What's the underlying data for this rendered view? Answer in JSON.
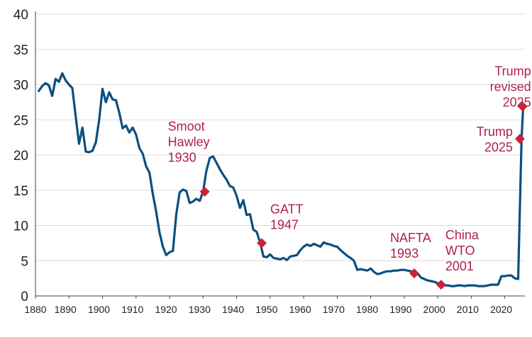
{
  "chart_data": {
    "type": "line",
    "title": "",
    "xlabel": "",
    "ylabel": "",
    "xlim": [
      1880,
      2026
    ],
    "ylim": [
      0,
      40
    ],
    "grid": true,
    "y_ticks": [
      "0",
      "5",
      "10",
      "15",
      "20",
      "25",
      "30",
      "35",
      "40"
    ],
    "x_ticks": [
      "1880",
      "1890",
      "1900",
      "1910",
      "1920",
      "1930",
      "1940",
      "1950",
      "1960",
      "1970",
      "1980",
      "1990",
      "2000",
      "2010",
      "2020"
    ],
    "colors": {
      "line": "#0b4f80",
      "marker": "#cc2233",
      "annotation": "#b0224a"
    },
    "series": [
      {
        "x": [
          1881,
          1882,
          1883,
          1884,
          1885,
          1886,
          1887,
          1888,
          1889,
          1890,
          1891,
          1892,
          1893,
          1894,
          1895,
          1896,
          1897,
          1898,
          1899,
          1900,
          1901,
          1902,
          1903,
          1904,
          1905,
          1906,
          1907,
          1908,
          1909,
          1910,
          1911,
          1912,
          1913,
          1914,
          1915,
          1916,
          1917,
          1918,
          1919,
          1920,
          1921,
          1922,
          1923,
          1924,
          1925,
          1926,
          1927,
          1928,
          1929,
          1930,
          1931,
          1932,
          1933,
          1934,
          1935,
          1936,
          1937,
          1938,
          1939,
          1940,
          1941,
          1942,
          1943,
          1944,
          1945,
          1946,
          1947,
          1948,
          1949,
          1950,
          1951,
          1952,
          1953,
          1954,
          1955,
          1956,
          1957,
          1958,
          1959,
          1960,
          1961,
          1962,
          1963,
          1964,
          1965,
          1966,
          1967,
          1968,
          1969,
          1970,
          1971,
          1972,
          1973,
          1974,
          1975,
          1976,
          1977,
          1978,
          1979,
          1980,
          1981,
          1982,
          1983,
          1984,
          1985,
          1986,
          1987,
          1988,
          1989,
          1990,
          1991,
          1992,
          1993,
          1994,
          1995,
          1996,
          1997,
          1998,
          1999,
          2000,
          2001,
          2002,
          2003,
          2004,
          2005,
          2006,
          2007,
          2008,
          2009,
          2010,
          2011,
          2012,
          2013,
          2014,
          2015,
          2016,
          2017,
          2018,
          2019,
          2020,
          2021,
          2022,
          2023,
          2024,
          2025,
          2025.5
        ],
        "values": [
          29.1,
          29.8,
          30.2,
          29.9,
          28.4,
          30.8,
          30.4,
          31.6,
          30.6,
          30.0,
          29.5,
          25.5,
          21.6,
          23.9,
          20.5,
          20.4,
          20.6,
          21.8,
          25.0,
          29.4,
          27.5,
          28.9,
          27.9,
          27.8,
          26.0,
          23.8,
          24.2,
          23.2,
          23.9,
          22.9,
          21.0,
          20.2,
          18.4,
          17.5,
          14.5,
          12.0,
          9.0,
          7.0,
          5.8,
          6.2,
          6.4,
          11.6,
          14.7,
          15.1,
          14.9,
          13.2,
          13.4,
          13.8,
          13.5,
          14.8,
          17.8,
          19.6,
          19.8,
          18.9,
          18.0,
          17.2,
          16.5,
          15.6,
          15.4,
          14.2,
          12.5,
          13.6,
          11.5,
          11.6,
          9.4,
          9.1,
          7.6,
          5.6,
          5.5,
          5.9,
          5.4,
          5.3,
          5.2,
          5.4,
          5.1,
          5.6,
          5.7,
          5.8,
          6.5,
          7.0,
          7.3,
          7.1,
          7.4,
          7.2,
          7.0,
          7.6,
          7.4,
          7.3,
          7.1,
          7.0,
          6.5,
          6.1,
          5.7,
          5.4,
          5.0,
          3.7,
          3.8,
          3.7,
          3.6,
          3.9,
          3.4,
          3.1,
          3.2,
          3.4,
          3.5,
          3.5,
          3.6,
          3.6,
          3.7,
          3.7,
          3.6,
          3.5,
          3.5,
          3.2,
          2.6,
          2.4,
          2.2,
          2.1,
          2.0,
          1.8,
          1.6,
          1.5,
          1.5,
          1.4,
          1.4,
          1.5,
          1.5,
          1.4,
          1.5,
          1.5,
          1.5,
          1.4,
          1.4,
          1.4,
          1.5,
          1.6,
          1.6,
          1.6,
          2.8,
          2.8,
          2.9,
          2.9,
          2.5,
          2.4,
          22.4,
          26.9
        ]
      }
    ],
    "annotations": [
      {
        "x": 1930.5,
        "y": 14.8,
        "lines": [
          "Smoot",
          "Hawley",
          "1930"
        ]
      },
      {
        "x": 1947.5,
        "y": 7.5,
        "lines": [
          "GATT",
          "1947"
        ]
      },
      {
        "x": 1993,
        "y": 3.2,
        "lines": [
          "NAFTA",
          "1993"
        ]
      },
      {
        "x": 2001,
        "y": 1.6,
        "lines": [
          "China",
          "WTO",
          "2001"
        ]
      },
      {
        "x": 2024.5,
        "y": 22.3,
        "lines": [
          "Trump",
          "2025"
        ]
      },
      {
        "x": 2025.3,
        "y": 26.9,
        "lines": [
          "Trump",
          "revised",
          "2025"
        ]
      }
    ]
  }
}
